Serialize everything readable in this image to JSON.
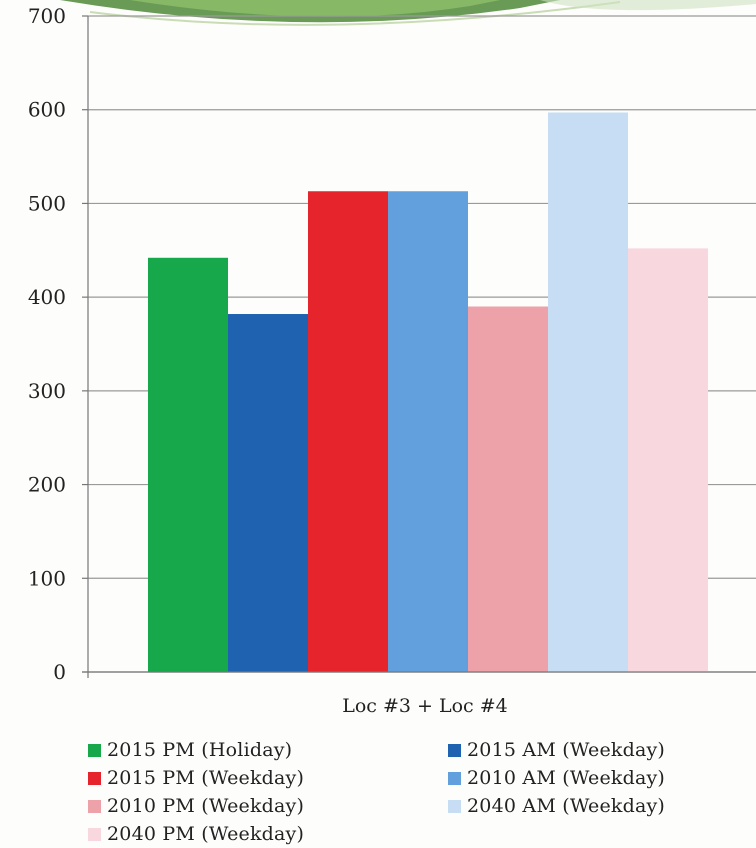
{
  "chart_data": {
    "type": "bar",
    "categories": [
      "Loc #3 + Loc #4"
    ],
    "series": [
      {
        "name": "2015 PM (Holiday)",
        "values": [
          442
        ],
        "color": "#16a84a"
      },
      {
        "name": "2015 AM (Weekday)",
        "values": [
          382
        ],
        "color": "#1f62b0"
      },
      {
        "name": "2015 PM (Weekday)",
        "values": [
          513
        ],
        "color": "#e5242b"
      },
      {
        "name": "2010 AM (Weekday)",
        "values": [
          513
        ],
        "color": "#62a0dd"
      },
      {
        "name": "2010 PM (Weekday)",
        "values": [
          390
        ],
        "color": "#eda1a9"
      },
      {
        "name": "2040 AM (Weekday)",
        "values": [
          597
        ],
        "color": "#c6ddf3"
      },
      {
        "name": "2040 PM (Weekday)",
        "values": [
          452
        ],
        "color": "#f9d7df"
      }
    ],
    "yticks": [
      "0",
      "100",
      "200",
      "300",
      "400",
      "500",
      "600",
      "700"
    ],
    "ylim": [
      0,
      700
    ],
    "grid": true,
    "legend_position": "bottom"
  }
}
